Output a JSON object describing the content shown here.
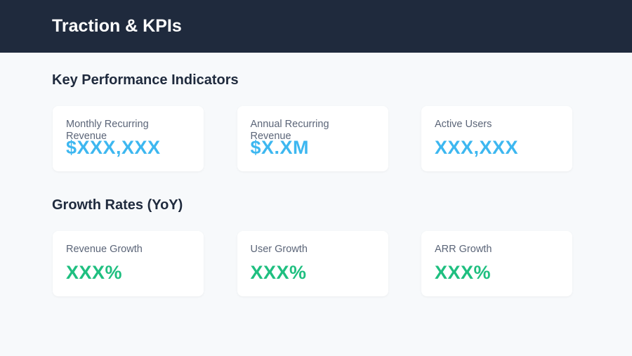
{
  "header": {
    "title": "Traction & KPIs"
  },
  "sections": [
    {
      "title": "Key Performance Indicators",
      "cards": [
        {
          "label": "Monthly Recurring Revenue",
          "value": "$XXX,XXX"
        },
        {
          "label": "Annual Recurring Revenue",
          "value": "$X.XM"
        },
        {
          "label": "Active Users",
          "value": "XXX,XXX"
        }
      ]
    },
    {
      "title": "Growth Rates (YoY)",
      "cards": [
        {
          "label": "Revenue Growth",
          "value": "XXX%"
        },
        {
          "label": "User Growth",
          "value": "XXX%"
        },
        {
          "label": "ARR Growth",
          "value": "XXX%"
        }
      ]
    }
  ]
}
